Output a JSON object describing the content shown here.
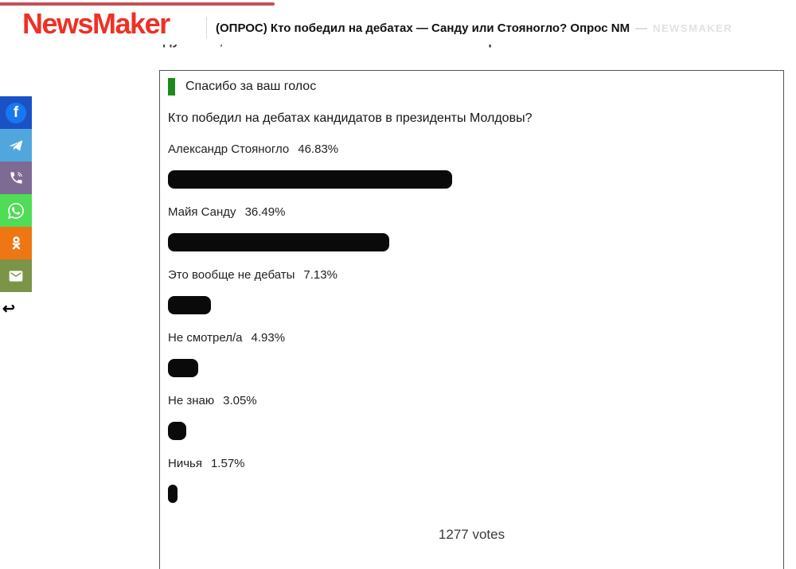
{
  "progress_bar": {
    "color": "#c25156"
  },
  "header": {
    "logo_text": "NewsMaker",
    "logo_color": "#ee3126",
    "article_title": "(ОПРОС) Кто победил на дебатах — Санду или Стояногло? Опрос NM",
    "separator_dash": "—",
    "site_label": "NEWSMAKER"
  },
  "article": {
    "clipped_heading": "думаете, кто в итоге оказался сильнее в этих прениях?"
  },
  "share_sidebar": {
    "items": [
      {
        "name": "facebook",
        "color": "#1a52c6"
      },
      {
        "name": "telegram",
        "color": "#51a7dd"
      },
      {
        "name": "viber",
        "color": "#7d6b94"
      },
      {
        "name": "whatsapp",
        "color": "#4fdd55"
      },
      {
        "name": "odnoklassniki",
        "color": "#ee7613"
      },
      {
        "name": "email",
        "color": "#7b9447"
      }
    ],
    "back_arrow_glyph": "↩"
  },
  "poll": {
    "status_label": "Спасибо за ваш голос",
    "accent_color": "#1d8a1d",
    "bar_color": "#0a0a0a",
    "question": "Кто победил на дебатах кандидатов в президенты Молдовы?",
    "options": [
      {
        "label": "Александр Стояногло",
        "percent_label": "46.83%",
        "percent": 46.83
      },
      {
        "label": "Майя Санду",
        "percent_label": "36.49%",
        "percent": 36.49
      },
      {
        "label": "Это вообще не дебаты",
        "percent_label": "7.13%",
        "percent": 7.13
      },
      {
        "label": "Не смотрел/а",
        "percent_label": "4.93%",
        "percent": 4.93
      },
      {
        "label": "Не знаю",
        "percent_label": "3.05%",
        "percent": 3.05
      },
      {
        "label": "Ничья",
        "percent_label": "1.57%",
        "percent": 1.57
      }
    ],
    "total_votes_label": "1277 votes"
  },
  "chart_data": {
    "type": "bar",
    "orientation": "horizontal",
    "title": "Кто победил на дебатах кандидатов в президенты Молдовы?",
    "categories": [
      "Александр Стояногло",
      "Майя Санду",
      "Это вообще не дебаты",
      "Не смотрел/а",
      "Не знаю",
      "Ничья"
    ],
    "values": [
      46.83,
      36.49,
      7.13,
      4.93,
      3.05,
      1.57
    ],
    "unit": "%",
    "xlim": [
      0,
      100
    ],
    "total_votes": 1277,
    "bar_color": "#0a0a0a"
  }
}
